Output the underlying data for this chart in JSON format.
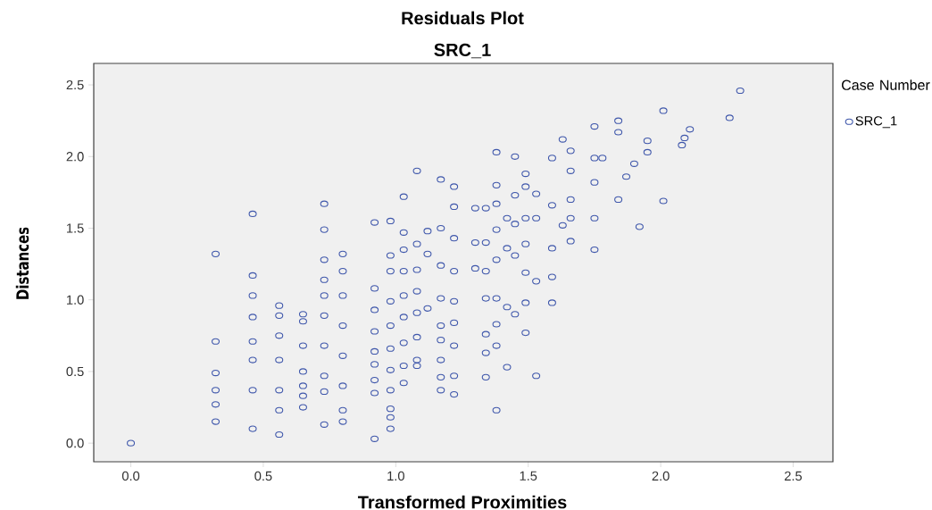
{
  "chart_data": {
    "type": "scatter",
    "title": "Residuals Plot",
    "subtitle": "SRC_1",
    "xlabel": "Transformed Proximities",
    "ylabel": "Distances",
    "legend_title": "Case Number",
    "legend": "top right",
    "marker": "circle",
    "grid": false,
    "xlim": [
      -0.14,
      2.65
    ],
    "ylim": [
      -0.13,
      2.65
    ],
    "xticks": [
      {
        "value": 0,
        "label": "0.0"
      },
      {
        "value": 0.5,
        "label": "0.5"
      },
      {
        "value": 1,
        "label": "1.0"
      },
      {
        "value": 1.5,
        "label": "1.5"
      },
      {
        "value": 2,
        "label": "2.0"
      },
      {
        "value": 2.5,
        "label": "2.5"
      }
    ],
    "yticks": [
      {
        "value": 0,
        "label": "0.0"
      },
      {
        "value": 0.5,
        "label": "0.5"
      },
      {
        "value": 1,
        "label": "1.0"
      },
      {
        "value": 1.5,
        "label": "1.5"
      },
      {
        "value": 2,
        "label": "2.0"
      },
      {
        "value": 2.5,
        "label": "2.5"
      }
    ],
    "series": [
      {
        "name": "SRC_1",
        "color": "#3f57ab",
        "x": [
          0,
          0.32,
          0.32,
          0.32,
          0.32,
          0.32,
          0.32,
          0.46,
          0.46,
          0.46,
          0.46,
          0.46,
          0.46,
          0.46,
          0.46,
          0.56,
          0.56,
          0.56,
          0.56,
          0.56,
          0.56,
          0.56,
          0.65,
          0.65,
          0.65,
          0.65,
          0.65,
          0.65,
          0.65,
          0.73,
          0.73,
          0.73,
          0.73,
          0.73,
          0.73,
          0.73,
          0.73,
          0.73,
          0.73,
          0.8,
          0.8,
          0.8,
          0.8,
          0.8,
          0.8,
          0.8,
          0.8,
          0.92,
          0.92,
          0.92,
          0.92,
          0.92,
          0.92,
          0.92,
          0.92,
          0.92,
          0.98,
          0.98,
          0.98,
          0.98,
          0.98,
          0.98,
          0.98,
          0.98,
          0.98,
          0.98,
          0.98,
          1.03,
          1.03,
          1.03,
          1.03,
          1.03,
          1.03,
          1.03,
          1.03,
          1.03,
          1.08,
          1.08,
          1.08,
          1.08,
          1.08,
          1.08,
          1.08,
          1.08,
          1.12,
          1.12,
          1.12,
          1.17,
          1.17,
          1.17,
          1.17,
          1.17,
          1.17,
          1.17,
          1.17,
          1.17,
          1.22,
          1.22,
          1.22,
          1.22,
          1.22,
          1.22,
          1.22,
          1.22,
          1.22,
          1.3,
          1.3,
          1.3,
          1.34,
          1.34,
          1.34,
          1.34,
          1.34,
          1.34,
          1.34,
          1.38,
          1.38,
          1.38,
          1.38,
          1.38,
          1.38,
          1.38,
          1.38,
          1.38,
          1.42,
          1.42,
          1.42,
          1.42,
          1.45,
          1.45,
          1.45,
          1.45,
          1.45,
          1.49,
          1.49,
          1.49,
          1.49,
          1.49,
          1.49,
          1.49,
          1.53,
          1.53,
          1.53,
          1.53,
          1.59,
          1.59,
          1.59,
          1.59,
          1.59,
          1.63,
          1.63,
          1.66,
          1.66,
          1.66,
          1.66,
          1.66,
          1.75,
          1.75,
          1.75,
          1.75,
          1.75,
          1.78,
          1.84,
          1.84,
          1.84,
          1.87,
          1.9,
          1.92,
          1.95,
          1.95,
          2.01,
          2.01,
          2.08,
          2.09,
          2.11,
          2.26,
          2.3
        ],
        "values": [
          0,
          1.32,
          0.71,
          0.49,
          0.37,
          0.27,
          0.15,
          1.6,
          1.17,
          1.03,
          0.88,
          0.71,
          0.58,
          0.37,
          0.1,
          0.96,
          0.89,
          0.75,
          0.58,
          0.37,
          0.23,
          0.06,
          0.9,
          0.85,
          0.68,
          0.5,
          0.4,
          0.33,
          0.25,
          1.67,
          1.49,
          1.28,
          1.14,
          1.03,
          0.89,
          0.68,
          0.47,
          0.36,
          0.13,
          1.32,
          1.2,
          1.03,
          0.82,
          0.61,
          0.4,
          0.23,
          0.15,
          1.54,
          1.08,
          0.93,
          0.78,
          0.64,
          0.55,
          0.44,
          0.35,
          0.03,
          1.55,
          1.31,
          1.2,
          0.99,
          0.82,
          0.66,
          0.51,
          0.37,
          0.24,
          0.18,
          0.1,
          1.72,
          1.47,
          1.35,
          1.2,
          1.03,
          0.88,
          0.7,
          0.54,
          0.42,
          1.9,
          1.39,
          1.21,
          1.06,
          0.91,
          0.74,
          0.58,
          0.54,
          1.48,
          1.32,
          0.94,
          1.84,
          1.5,
          1.24,
          1.01,
          0.82,
          0.72,
          0.58,
          0.46,
          0.37,
          1.79,
          1.65,
          1.43,
          1.2,
          0.99,
          0.84,
          0.68,
          0.47,
          0.34,
          1.64,
          1.4,
          1.22,
          1.64,
          1.4,
          1.2,
          1.01,
          0.76,
          0.63,
          0.46,
          2.03,
          1.8,
          1.67,
          1.49,
          1.28,
          1.01,
          0.83,
          0.68,
          0.23,
          1.57,
          1.36,
          0.95,
          0.53,
          2.0,
          1.73,
          1.53,
          1.31,
          0.9,
          1.88,
          1.79,
          1.57,
          1.39,
          1.19,
          0.98,
          0.77,
          1.74,
          1.57,
          1.13,
          0.47,
          1.99,
          1.66,
          1.36,
          1.16,
          0.98,
          2.12,
          1.52,
          2.04,
          1.9,
          1.7,
          1.57,
          1.41,
          2.21,
          1.82,
          1.57,
          1.35,
          1.99,
          1.99,
          2.25,
          2.17,
          1.7,
          1.86,
          1.95,
          1.51,
          2.11,
          2.03,
          2.32,
          1.69,
          2.08,
          2.13,
          2.19,
          2.27,
          2.46
        ]
      }
    ]
  }
}
